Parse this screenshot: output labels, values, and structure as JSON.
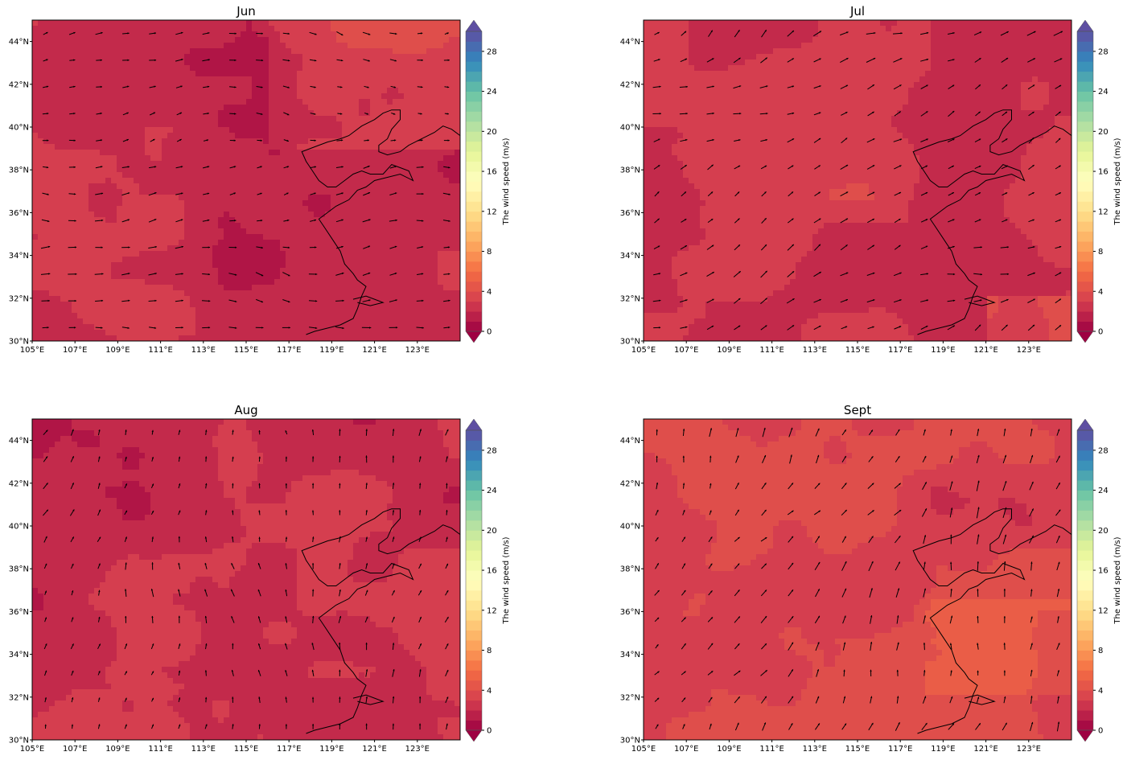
{
  "panels": [
    {
      "title": "Jun",
      "base": 2.2,
      "coast_shift": 0,
      "wind_dir": 0.0,
      "wind_scale": 0.9
    },
    {
      "title": "Jul",
      "base": 2.6,
      "coast_shift": 0,
      "wind_dir": 0.5,
      "wind_scale": 1.0
    },
    {
      "title": "Aug",
      "base": 2.4,
      "coast_shift": 0,
      "wind_dir": 1.4,
      "wind_scale": 0.8
    },
    {
      "title": "Sept",
      "base": 3.4,
      "coast_shift": 0,
      "wind_dir": 1.2,
      "wind_scale": 1.1
    }
  ],
  "x_ticks": [
    "105°E",
    "107°E",
    "109°E",
    "111°E",
    "113°E",
    "115°E",
    "117°E",
    "119°E",
    "121°E",
    "123°E"
  ],
  "y_ticks": [
    "30°N",
    "32°N",
    "34°N",
    "36°N",
    "38°N",
    "40°N",
    "42°N",
    "44°N"
  ],
  "colorbar": {
    "label": "The wind speed (m/s)",
    "ticks": [
      "0",
      "4",
      "8",
      "12",
      "16",
      "20",
      "24",
      "28"
    ],
    "levels": [
      0,
      30
    ],
    "colors": [
      "#9e0142",
      "#d53e4f",
      "#f46d43",
      "#fdae61",
      "#fee08b",
      "#ffffbf",
      "#e6f598",
      "#abdda4",
      "#66c2a5",
      "#3288bd",
      "#5e4fa2"
    ]
  },
  "chart_data": [
    {
      "type": "heatmap",
      "title": "Jun",
      "variable": "The wind speed (m/s)",
      "xlim": [
        "105°E",
        "125°E"
      ],
      "ylim": [
        "30°N",
        "45°N"
      ],
      "range": [
        0,
        30
      ]
    },
    {
      "type": "heatmap",
      "title": "Jul",
      "variable": "The wind speed (m/s)",
      "xlim": [
        "105°E",
        "125°E"
      ],
      "ylim": [
        "30°N",
        "45°N"
      ],
      "range": [
        0,
        30
      ]
    },
    {
      "type": "heatmap",
      "title": "Aug",
      "variable": "The wind speed (m/s)",
      "xlim": [
        "105°E",
        "125°E"
      ],
      "ylim": [
        "30°N",
        "45°N"
      ],
      "range": [
        0,
        30
      ]
    },
    {
      "type": "heatmap",
      "title": "Sept",
      "variable": "The wind speed (m/s)",
      "xlim": [
        "105°E",
        "125°E"
      ],
      "ylim": [
        "30°N",
        "45°N"
      ],
      "range": [
        0,
        30
      ]
    }
  ]
}
